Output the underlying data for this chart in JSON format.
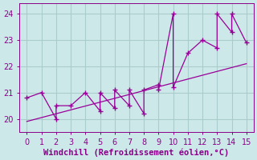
{
  "xlabel": "Windchill (Refroidissement éolien,°C)",
  "background_color": "#cde8e8",
  "line_color": "#990099",
  "grid_color": "#aacccc",
  "xlim": [
    -0.5,
    15.5
  ],
  "ylim": [
    19.5,
    24.4
  ],
  "xticks": [
    0,
    1,
    2,
    3,
    4,
    5,
    6,
    7,
    8,
    9,
    10,
    11,
    12,
    13,
    14,
    15
  ],
  "yticks": [
    20,
    21,
    22,
    23,
    24
  ],
  "data_x": [
    0,
    1,
    2,
    2,
    3,
    4,
    5,
    5,
    6,
    6,
    7,
    7,
    8,
    8,
    9,
    9,
    10,
    10,
    11,
    12,
    13,
    13,
    14,
    14,
    15
  ],
  "data_y": [
    20.8,
    21.0,
    20.0,
    20.5,
    20.5,
    21.0,
    20.3,
    21.0,
    20.4,
    21.1,
    20.5,
    21.1,
    20.2,
    21.1,
    21.3,
    21.1,
    24.0,
    21.2,
    22.5,
    23.0,
    22.7,
    24.0,
    23.3,
    24.0,
    22.9
  ],
  "trend_x": [
    0,
    15
  ],
  "trend_y": [
    19.9,
    22.1
  ],
  "tick_color": "#880088",
  "tick_fontsize": 7,
  "xlabel_fontsize": 7.5,
  "marker": "+"
}
